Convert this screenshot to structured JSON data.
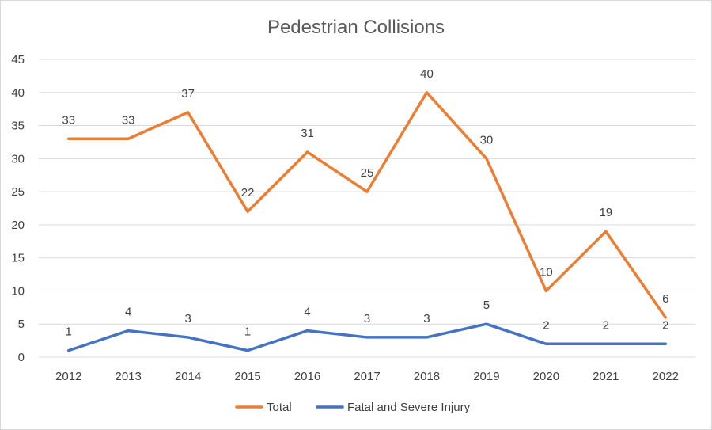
{
  "chart_data": {
    "type": "line",
    "title": "Pedestrian Collisions",
    "xlabel": "",
    "ylabel": "",
    "categories": [
      "2012",
      "2013",
      "2014",
      "2015",
      "2016",
      "2017",
      "2018",
      "2019",
      "2020",
      "2021",
      "2022"
    ],
    "ylim": [
      0,
      45
    ],
    "yticks": [
      0,
      5,
      10,
      15,
      20,
      25,
      30,
      35,
      40,
      45
    ],
    "grid": true,
    "legend_position": "bottom",
    "series": [
      {
        "name": "Total",
        "color": "#ED7D31",
        "values": [
          33,
          33,
          37,
          22,
          31,
          25,
          40,
          30,
          10,
          19,
          6
        ]
      },
      {
        "name": "Fatal and Severe Injury",
        "color": "#4472C4",
        "values": [
          1,
          4,
          3,
          1,
          4,
          3,
          3,
          5,
          2,
          2,
          2
        ]
      }
    ]
  }
}
